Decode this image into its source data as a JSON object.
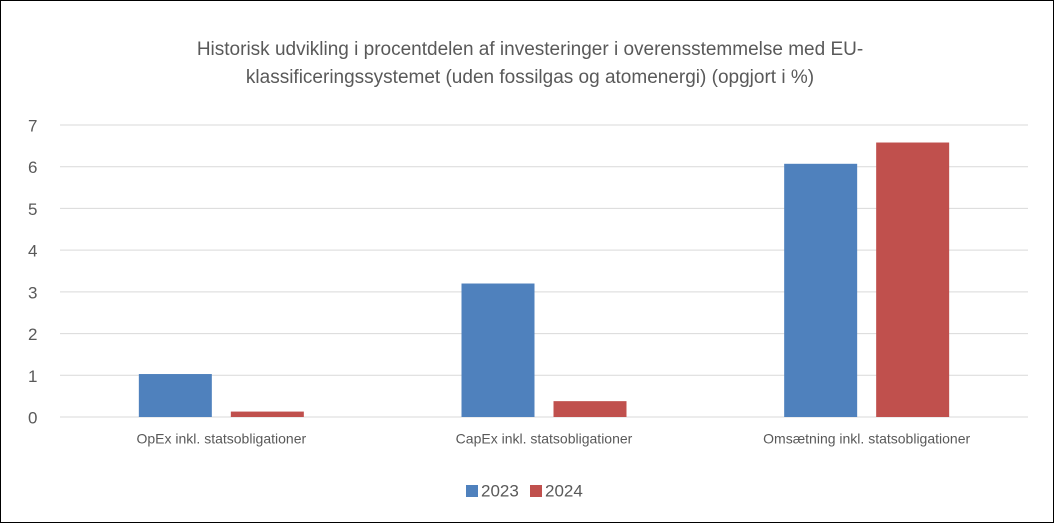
{
  "chart_data": {
    "type": "bar",
    "title": "Historisk udvikling i procentdelen af investeringer i overensstemmelse med EU-klassificeringssystemet (uden fossilgas og atomenergi) (opgjort i %)",
    "categories": [
      "OpEx inkl. statsobligationer",
      "CapEx inkl. statsobligationer",
      "Omsætning inkl. statsobligationer"
    ],
    "series": [
      {
        "name": "2023",
        "color": "#4f81bd",
        "values": [
          1.03,
          3.2,
          6.07
        ]
      },
      {
        "name": "2024",
        "color": "#c0504d",
        "values": [
          0.13,
          0.38,
          6.58
        ]
      }
    ],
    "ylim": [
      0,
      7
    ],
    "yticks": [
      0,
      1,
      2,
      3,
      4,
      5,
      6,
      7
    ],
    "grid": true,
    "legend": "bottom"
  }
}
